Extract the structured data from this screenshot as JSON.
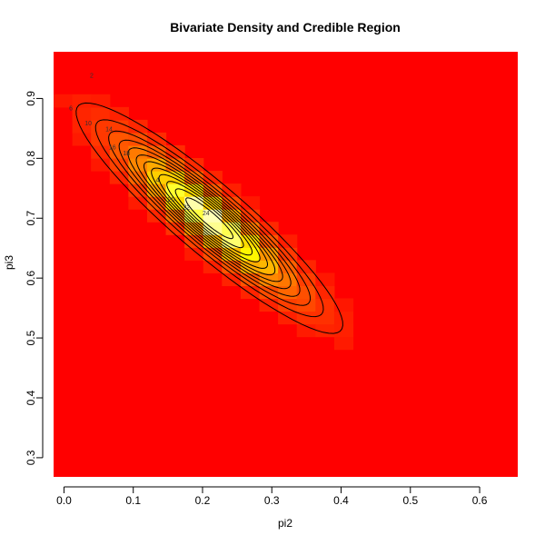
{
  "chart_data": {
    "type": "heatmap",
    "title": "Bivariate Density and Credible Region",
    "xlabel": "pi2",
    "ylabel": "pi3",
    "xlim": [
      -0.015,
      0.655
    ],
    "ylim": [
      0.268,
      0.978
    ],
    "x_ticks": [
      "0.0",
      "0.1",
      "0.2",
      "0.3",
      "0.4",
      "0.5",
      "0.6"
    ],
    "y_ticks": [
      "0.3",
      "0.4",
      "0.5",
      "0.6",
      "0.7",
      "0.8",
      "0.9"
    ],
    "grid": false,
    "colors": {
      "background": "#ff0000",
      "low": "#ff1a00",
      "mid": "#ff8000",
      "high": "#ffff00",
      "peak": "#ffffdd",
      "contour": "#000000"
    },
    "density": {
      "center_x": 0.21,
      "center_y": 0.7,
      "sd_x": 0.085,
      "sd_y": 0.085,
      "correlation": -0.92,
      "peak": 26
    },
    "contour_levels": [
      2,
      4,
      6,
      8,
      10,
      12,
      14,
      16,
      18,
      20,
      22,
      24
    ],
    "contour_labels": [
      {
        "text": "2",
        "x": 0.04,
        "y": 0.935
      },
      {
        "text": "6",
        "x": 0.01,
        "y": 0.88
      },
      {
        "text": "10",
        "x": 0.035,
        "y": 0.855
      },
      {
        "text": "14",
        "x": 0.065,
        "y": 0.845
      },
      {
        "text": "16",
        "x": 0.07,
        "y": 0.815
      },
      {
        "text": "18",
        "x": 0.09,
        "y": 0.805
      },
      {
        "text": "4",
        "x": 0.135,
        "y": 0.76
      },
      {
        "text": "20",
        "x": 0.155,
        "y": 0.728
      },
      {
        "text": "22",
        "x": 0.177,
        "y": 0.715
      },
      {
        "text": "24",
        "x": 0.205,
        "y": 0.705
      }
    ]
  }
}
